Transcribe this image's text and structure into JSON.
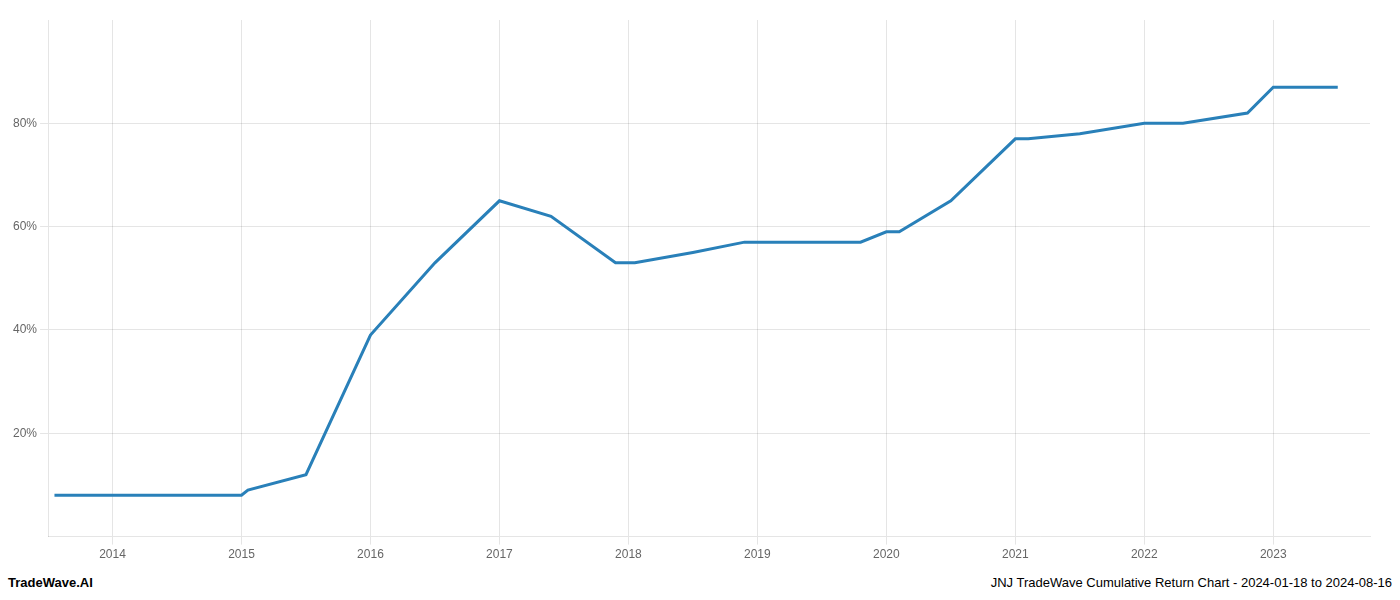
{
  "chart_data": {
    "type": "line",
    "x": [
      2013.55,
      2014.0,
      2014.95,
      2015.0,
      2015.05,
      2015.5,
      2016.0,
      2016.5,
      2017.0,
      2017.4,
      2017.9,
      2018.05,
      2018.5,
      2018.9,
      2019.5,
      2019.8,
      2020.0,
      2020.1,
      2020.5,
      2021.0,
      2021.1,
      2021.5,
      2022.0,
      2022.3,
      2022.8,
      2023.0,
      2023.5
    ],
    "values": [
      8,
      8,
      8,
      8,
      9,
      12,
      39,
      53,
      65,
      62,
      53,
      53,
      55,
      57,
      57,
      57,
      59,
      59,
      65,
      77,
      77,
      78,
      80,
      80,
      82,
      87,
      87
    ],
    "color": "#2980b9",
    "xlim": [
      2013.5,
      2023.75
    ],
    "ylim": [
      0,
      100
    ],
    "xticks": [
      2014,
      2015,
      2016,
      2017,
      2018,
      2019,
      2020,
      2021,
      2022,
      2023
    ],
    "yticks": [
      {
        "value": 20,
        "label": "20%"
      },
      {
        "value": 40,
        "label": "40%"
      },
      {
        "value": 60,
        "label": "60%"
      },
      {
        "value": 80,
        "label": "80%"
      }
    ],
    "grid": true,
    "annotations": [
      {
        "text": "TradeWave.AI"
      },
      {
        "text": "JNJ TradeWave Cumulative Return Chart - 2024-01-18 to 2024-08-16"
      }
    ]
  }
}
